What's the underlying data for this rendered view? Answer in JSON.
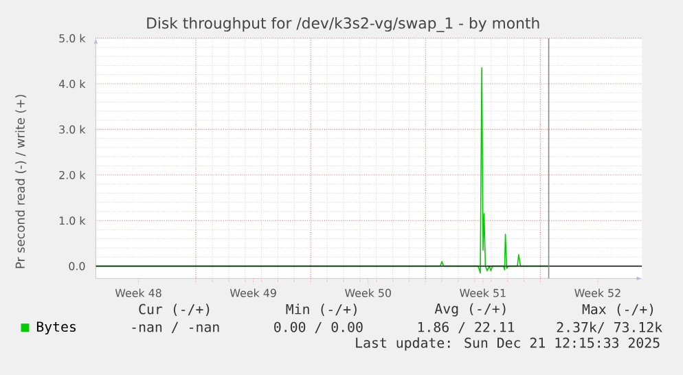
{
  "chart_data": {
    "type": "line",
    "title": "Disk throughput for /dev/k3s2-vg/swap_1 - by month",
    "ylabel": "Pr second read (-) / write (+)",
    "xlim": [
      "2025-11-23T21:36",
      "2025-12-27T04:48"
    ],
    "ylim": [
      -270,
      5000
    ],
    "xticks": [
      {
        "value": "2025-11-26T12:00",
        "label": "Week 48"
      },
      {
        "value": "2025-12-03T12:00",
        "label": "Week 49"
      },
      {
        "value": "2025-12-10T12:00",
        "label": "Week 50"
      },
      {
        "value": "2025-12-17T12:00",
        "label": "Week 51"
      },
      {
        "value": "2025-12-24T12:00",
        "label": "Week 52"
      },
      {
        "value": "2025-11-30",
        "label": null
      },
      {
        "value": "2025-12-07",
        "label": null
      },
      {
        "value": "2025-12-14",
        "label": null
      },
      {
        "value": "2025-12-21",
        "label": null
      }
    ],
    "yticks": [
      {
        "value": 0,
        "label": "0.0"
      },
      {
        "value": 1000,
        "label": "1.0 k"
      },
      {
        "value": 2000,
        "label": "2.0 k"
      },
      {
        "value": 3000,
        "label": "3.0 k"
      },
      {
        "value": 4000,
        "label": "4.0 k"
      },
      {
        "value": 5000,
        "label": "5.0 k"
      }
    ],
    "grid": true,
    "legend": "bottom left",
    "marker": "none",
    "line_style": "solid",
    "series": [
      {
        "name": "Bytes",
        "color": "#00cc00",
        "x": [
          "2025-11-23T21:36",
          "2025-12-14T21:36",
          "2025-12-15T00:00",
          "2025-12-15T02:24",
          "2025-12-17T05:02",
          "2025-12-17T08:10",
          "2025-12-17T10:19",
          "2025-12-17T12:14",
          "2025-12-17T13:41",
          "2025-12-17T15:36",
          "2025-12-17T18:14",
          "2025-12-17T21:36",
          "2025-12-17T23:31",
          "2025-12-18T02:10",
          "2025-12-18T18:14",
          "2025-12-18T19:41",
          "2025-12-18T20:53",
          "2025-12-18T22:48",
          "2025-12-19T00:58",
          "2025-12-19T14:24",
          "2025-12-19T16:19",
          "2025-12-19T18:58",
          "2025-12-21T12:15"
        ],
        "values": [
          0,
          0,
          100,
          0,
          0,
          -150,
          4350,
          350,
          1150,
          0,
          -100,
          0,
          -100,
          0,
          0,
          -80,
          700,
          -50,
          0,
          0,
          250,
          0,
          0
        ]
      }
    ],
    "ref_lines": [
      {
        "axis": "y",
        "value": 0,
        "color": "#000000"
      },
      {
        "axis": "x",
        "value": "2025-12-21T12:15",
        "color": "#888888"
      }
    ],
    "annotations": [
      "Cur (-/+)",
      "Min (-/+)",
      "Avg (-/+)",
      "Max (-/+)",
      "-nan /  -nan",
      "0.00 /  0.00",
      "1.86 / 22.11",
      "2.37k/ 73.12k",
      "Last update: Sun Dec 21 12:15:33 2025"
    ]
  }
}
